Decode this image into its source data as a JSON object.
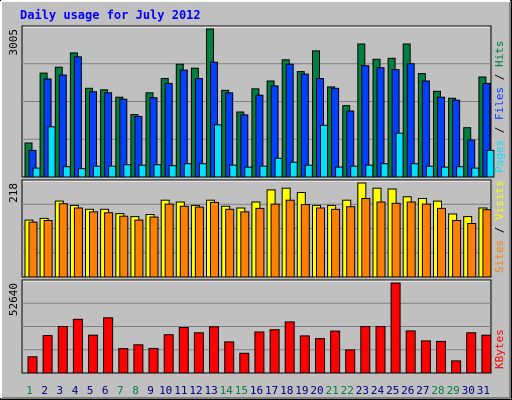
{
  "chart_data": [
    {
      "type": "bar",
      "title": "Daily usage for July 2012",
      "panel": "top",
      "max_label": "3005",
      "categories": [
        "1",
        "2",
        "3",
        "4",
        "5",
        "6",
        "7",
        "8",
        "9",
        "10",
        "11",
        "12",
        "13",
        "14",
        "15",
        "16",
        "17",
        "18",
        "19",
        "20",
        "21",
        "22",
        "23",
        "24",
        "25",
        "26",
        "27",
        "28",
        "29",
        "30",
        "31"
      ],
      "series": [
        {
          "name": "Hits",
          "color": "#008040",
          "values": [
            690,
            2110,
            2230,
            2520,
            1800,
            1770,
            1620,
            1270,
            1710,
            2000,
            2290,
            2210,
            3005,
            1760,
            1320,
            1790,
            1950,
            2380,
            2140,
            2560,
            1830,
            1450,
            2700,
            2390,
            2410,
            2700,
            2100,
            1740,
            1600,
            1000,
            2030
          ]
        },
        {
          "name": "Files",
          "color": "#0040ff",
          "values": [
            540,
            1990,
            2070,
            2440,
            1730,
            1710,
            1580,
            1230,
            1610,
            1900,
            2170,
            2000,
            2330,
            1710,
            1260,
            1660,
            1850,
            2290,
            2090,
            2000,
            1800,
            1340,
            2260,
            2220,
            2180,
            2300,
            1950,
            1620,
            1560,
            750,
            1900
          ]
        },
        {
          "name": "Pages",
          "color": "#00e0ff",
          "values": [
            180,
            1020,
            210,
            170,
            220,
            220,
            250,
            240,
            250,
            230,
            270,
            270,
            1060,
            240,
            200,
            220,
            380,
            300,
            240,
            1050,
            200,
            220,
            240,
            270,
            890,
            270,
            220,
            200,
            210,
            180,
            540
          ]
        }
      ],
      "legend_order": [
        "Pages",
        "Files",
        "Hits"
      ],
      "ylim": [
        0,
        3005
      ]
    },
    {
      "type": "bar",
      "panel": "middle",
      "max_label": "218",
      "categories": [
        "1",
        "2",
        "3",
        "4",
        "5",
        "6",
        "7",
        "8",
        "9",
        "10",
        "11",
        "12",
        "13",
        "14",
        "15",
        "16",
        "17",
        "18",
        "19",
        "20",
        "21",
        "22",
        "23",
        "24",
        "25",
        "26",
        "27",
        "28",
        "29",
        "30",
        "31"
      ],
      "series": [
        {
          "name": "Visits",
          "color": "#ffff00",
          "values": [
            132,
            136,
            176,
            166,
            157,
            157,
            147,
            140,
            145,
            178,
            174,
            166,
            178,
            164,
            160,
            174,
            202,
            206,
            196,
            166,
            166,
            178,
            218,
            206,
            204,
            186,
            182,
            176,
            146,
            140,
            160
          ]
        },
        {
          "name": "Sites",
          "color": "#ff8000",
          "values": [
            127,
            131,
            170,
            160,
            151,
            149,
            141,
            132,
            139,
            169,
            164,
            162,
            173,
            157,
            151,
            159,
            169,
            178,
            168,
            160,
            157,
            163,
            182,
            174,
            171,
            174,
            169,
            159,
            131,
            124,
            156
          ]
        }
      ],
      "legend_order": [
        "Sites",
        "Visits"
      ],
      "ylim": [
        0,
        218
      ]
    },
    {
      "type": "bar",
      "panel": "bottom",
      "max_label": "52640",
      "categories": [
        "1",
        "2",
        "3",
        "4",
        "5",
        "6",
        "7",
        "8",
        "9",
        "10",
        "11",
        "12",
        "13",
        "14",
        "15",
        "16",
        "17",
        "18",
        "19",
        "20",
        "21",
        "22",
        "23",
        "24",
        "25",
        "26",
        "27",
        "28",
        "29",
        "30",
        "31"
      ],
      "series": [
        {
          "name": "KBytes",
          "color": "#ff0000",
          "values": [
            9500,
            21900,
            27200,
            31400,
            22100,
            32300,
            14300,
            16500,
            14400,
            22400,
            26600,
            23500,
            27000,
            18200,
            11500,
            24000,
            25300,
            29900,
            21700,
            20100,
            24500,
            13500,
            27200,
            27200,
            52640,
            24600,
            18800,
            18500,
            7100,
            23500,
            22100
          ]
        }
      ],
      "legend_order": [
        "KBytes"
      ],
      "ylim": [
        0,
        52640
      ]
    }
  ],
  "weekend_days": [
    1,
    7,
    8,
    14,
    15,
    21,
    22,
    28,
    29
  ],
  "colors": {
    "background": "#c0c0c0",
    "panel": "#c0c0c0",
    "grid": "#808080",
    "separator": "#000000",
    "weekday_label": "#000080",
    "weekend_label": "#008040"
  }
}
